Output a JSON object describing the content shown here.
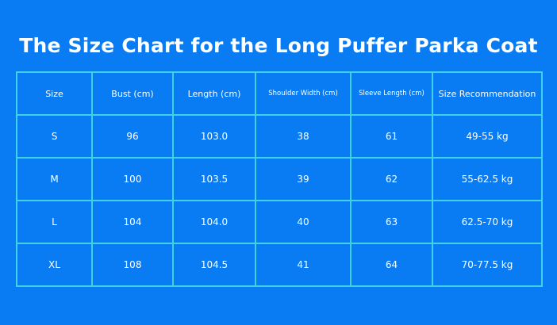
{
  "title": "The Size Chart for the Long Puffer Parka Coat",
  "table": {
    "headers": [
      "Size",
      "Bust (cm)",
      "Length (cm)",
      "Shoulder Width (cm)",
      "Sleeve Length (cm)",
      "Size Recommendation"
    ],
    "rows": [
      [
        "S",
        "96",
        "103.0",
        "38",
        "61",
        "49-55 kg"
      ],
      [
        "M",
        "100",
        "103.5",
        "39",
        "62",
        "55-62.5 kg"
      ],
      [
        "L",
        "104",
        "104.0",
        "40",
        "63",
        "62.5-70 kg"
      ],
      [
        "XL",
        "108",
        "104.5",
        "41",
        "64",
        "70-77.5 kg"
      ]
    ]
  },
  "colors": {
    "background": "#0a7cf3",
    "grid": "#3fd3e2",
    "text": "#ffffff"
  }
}
